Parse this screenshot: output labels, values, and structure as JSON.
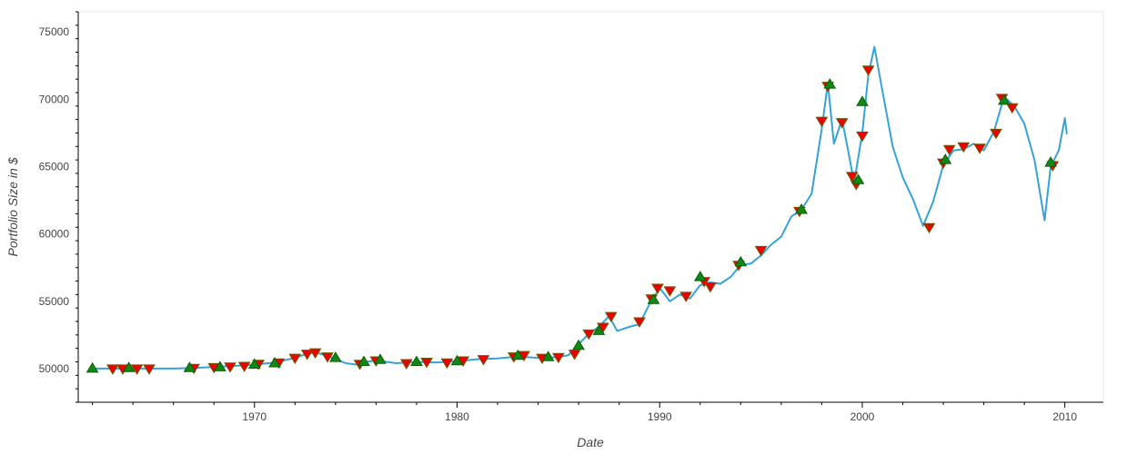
{
  "chart_data": {
    "type": "line",
    "title": "",
    "xlabel": "Date",
    "ylabel": "Portfolio Size in $",
    "xlim": [
      1961.3,
      2011.9
    ],
    "ylim": [
      47500,
      76500
    ],
    "x_ticks": [
      1970,
      1980,
      1990,
      2000,
      2010
    ],
    "y_ticks": [
      50000,
      55000,
      60000,
      65000,
      70000,
      75000
    ],
    "grid": false,
    "legend": "none",
    "series": [
      {
        "kind": "line",
        "color": "#36a2d9",
        "points": [
          [
            1962.0,
            50000
          ],
          [
            1964.0,
            50000
          ],
          [
            1966.0,
            50000
          ],
          [
            1967.0,
            50050
          ],
          [
            1969.0,
            50200
          ],
          [
            1970.0,
            50300
          ],
          [
            1971.0,
            50450
          ],
          [
            1972.0,
            50800
          ],
          [
            1972.5,
            51050
          ],
          [
            1973.0,
            51200
          ],
          [
            1973.5,
            51000
          ],
          [
            1974.0,
            50700
          ],
          [
            1974.5,
            50400
          ],
          [
            1975.0,
            50300
          ],
          [
            1975.5,
            50500
          ],
          [
            1976.0,
            50600
          ],
          [
            1977.0,
            50400
          ],
          [
            1978.0,
            50500
          ],
          [
            1979.0,
            50450
          ],
          [
            1980.0,
            50550
          ],
          [
            1981.0,
            50700
          ],
          [
            1982.0,
            50750
          ],
          [
            1983.0,
            50900
          ],
          [
            1984.0,
            50800
          ],
          [
            1985.0,
            50850
          ],
          [
            1985.5,
            51000
          ],
          [
            1986.0,
            51800
          ],
          [
            1986.5,
            52600
          ],
          [
            1987.0,
            53100
          ],
          [
            1987.5,
            53900
          ],
          [
            1987.9,
            52800
          ],
          [
            1988.5,
            53100
          ],
          [
            1989.0,
            53300
          ],
          [
            1989.5,
            54800
          ],
          [
            1990.0,
            56000
          ],
          [
            1990.5,
            55000
          ],
          [
            1991.0,
            55500
          ],
          [
            1991.5,
            55200
          ],
          [
            1992.0,
            56200
          ],
          [
            1992.5,
            56400
          ],
          [
            1993.0,
            56300
          ],
          [
            1993.5,
            56800
          ],
          [
            1994.0,
            57700
          ],
          [
            1994.5,
            57800
          ],
          [
            1995.0,
            58400
          ],
          [
            1995.5,
            59200
          ],
          [
            1996.0,
            59800
          ],
          [
            1996.5,
            61300
          ],
          [
            1997.0,
            61800
          ],
          [
            1997.5,
            63000
          ],
          [
            1998.0,
            67800
          ],
          [
            1998.3,
            71200
          ],
          [
            1998.6,
            66700
          ],
          [
            1999.0,
            68500
          ],
          [
            1999.3,
            66200
          ],
          [
            1999.6,
            63800
          ],
          [
            2000.0,
            67500
          ],
          [
            2000.3,
            71800
          ],
          [
            2000.6,
            73900
          ],
          [
            2001.0,
            70600
          ],
          [
            2001.5,
            66500
          ],
          [
            2002.0,
            64200
          ],
          [
            2002.5,
            62600
          ],
          [
            2003.0,
            60600
          ],
          [
            2003.5,
            62400
          ],
          [
            2004.0,
            65100
          ],
          [
            2004.5,
            66200
          ],
          [
            2005.0,
            66300
          ],
          [
            2005.5,
            66700
          ],
          [
            2006.0,
            66200
          ],
          [
            2006.5,
            67600
          ],
          [
            2007.0,
            70200
          ],
          [
            2007.5,
            69500
          ],
          [
            2008.0,
            68200
          ],
          [
            2008.5,
            65500
          ],
          [
            2009.0,
            61000
          ],
          [
            2009.3,
            65000
          ],
          [
            2009.7,
            66200
          ],
          [
            2010.0,
            68600
          ],
          [
            2010.1,
            67400
          ]
        ]
      },
      {
        "kind": "markers",
        "marker": "triangle-down",
        "color": "#ee0000",
        "edge": "#6b5a00",
        "points": [
          [
            1963.0,
            50000
          ],
          [
            1963.5,
            50000
          ],
          [
            1964.2,
            50000
          ],
          [
            1964.8,
            50000
          ],
          [
            1967.0,
            50050
          ],
          [
            1968.0,
            50100
          ],
          [
            1968.8,
            50150
          ],
          [
            1969.5,
            50200
          ],
          [
            1970.2,
            50350
          ],
          [
            1971.2,
            50450
          ],
          [
            1972.0,
            50800
          ],
          [
            1972.6,
            51100
          ],
          [
            1973.0,
            51200
          ],
          [
            1973.6,
            50900
          ],
          [
            1975.2,
            50350
          ],
          [
            1976.0,
            50600
          ],
          [
            1977.5,
            50400
          ],
          [
            1978.5,
            50500
          ],
          [
            1979.5,
            50450
          ],
          [
            1980.3,
            50600
          ],
          [
            1981.3,
            50700
          ],
          [
            1982.8,
            50900
          ],
          [
            1983.3,
            51000
          ],
          [
            1984.2,
            50800
          ],
          [
            1985.0,
            50850
          ],
          [
            1985.8,
            51100
          ],
          [
            1986.5,
            52600
          ],
          [
            1987.2,
            53100
          ],
          [
            1987.6,
            53900
          ],
          [
            1989.0,
            53500
          ],
          [
            1989.6,
            55200
          ],
          [
            1989.9,
            56000
          ],
          [
            1990.5,
            55800
          ],
          [
            1991.3,
            55400
          ],
          [
            1992.2,
            56500
          ],
          [
            1992.5,
            56100
          ],
          [
            1993.9,
            57700
          ],
          [
            1995.0,
            58800
          ],
          [
            1996.9,
            61700
          ],
          [
            1998.0,
            68400
          ],
          [
            1998.3,
            71000
          ],
          [
            1999.0,
            68300
          ],
          [
            1999.5,
            64300
          ],
          [
            1999.7,
            63700
          ],
          [
            2000.0,
            67300
          ],
          [
            2000.3,
            72200
          ],
          [
            2003.3,
            60500
          ],
          [
            2004.0,
            65300
          ],
          [
            2004.3,
            66300
          ],
          [
            2005.0,
            66500
          ],
          [
            2005.8,
            66400
          ],
          [
            2006.6,
            67500
          ],
          [
            2006.9,
            70100
          ],
          [
            2007.4,
            69400
          ],
          [
            2009.4,
            65100
          ]
        ]
      },
      {
        "kind": "markers",
        "marker": "triangle-up",
        "color": "#118811",
        "edge": "#0b5e0b",
        "points": [
          [
            1962.0,
            50000
          ],
          [
            1963.8,
            50050
          ],
          [
            1966.8,
            50050
          ],
          [
            1968.3,
            50100
          ],
          [
            1970.0,
            50300
          ],
          [
            1971.0,
            50400
          ],
          [
            1974.0,
            50800
          ],
          [
            1975.4,
            50500
          ],
          [
            1976.2,
            50650
          ],
          [
            1978.0,
            50500
          ],
          [
            1980.0,
            50550
          ],
          [
            1983.0,
            50950
          ],
          [
            1984.5,
            50850
          ],
          [
            1986.0,
            51700
          ],
          [
            1987.0,
            52800
          ],
          [
            1989.7,
            55100
          ],
          [
            1992.0,
            56800
          ],
          [
            1994.0,
            57900
          ],
          [
            1997.0,
            61800
          ],
          [
            1998.4,
            71100
          ],
          [
            1999.8,
            64000
          ],
          [
            2000.0,
            69800
          ],
          [
            2004.1,
            65500
          ],
          [
            2007.0,
            69900
          ],
          [
            2009.3,
            65300
          ]
        ]
      }
    ]
  }
}
